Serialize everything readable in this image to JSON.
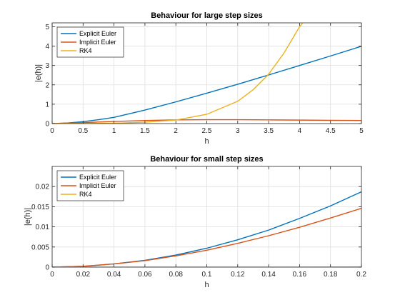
{
  "chart_data": [
    {
      "type": "line",
      "title": "Behaviour for large step sizes",
      "xlabel": "h",
      "ylabel": "|e(h)|",
      "xlim": [
        0,
        5
      ],
      "ylim": [
        0,
        5.2
      ],
      "xticks": [
        "0",
        "0.5",
        "1",
        "1.5",
        "2",
        "2.5",
        "3",
        "3.5",
        "4",
        "4.5",
        "5"
      ],
      "xtick_values": [
        0,
        0.5,
        1,
        1.5,
        2,
        2.5,
        3,
        3.5,
        4,
        4.5,
        5
      ],
      "yticks": [
        "0",
        "1",
        "2",
        "3",
        "4",
        "5"
      ],
      "ytick_values": [
        0,
        1,
        2,
        3,
        4,
        5
      ],
      "grid": true,
      "legend_position": "top-left",
      "series": [
        {
          "name": "Explicit Euler",
          "color": "#0072BD",
          "x": [
            0,
            0.25,
            0.5,
            0.75,
            1,
            1.5,
            2,
            2.5,
            3,
            3.5,
            4,
            4.5,
            5
          ],
          "y": [
            0,
            0.03,
            0.1,
            0.2,
            0.32,
            0.7,
            1.12,
            1.57,
            2.03,
            2.51,
            3.0,
            3.49,
            3.99
          ]
        },
        {
          "name": "Implicit Euler",
          "color": "#D95319",
          "x": [
            0,
            0.25,
            0.5,
            0.75,
            1,
            1.5,
            2,
            2.5,
            3,
            3.5,
            4,
            4.5,
            5
          ],
          "y": [
            0,
            0.02,
            0.05,
            0.08,
            0.11,
            0.16,
            0.19,
            0.2,
            0.2,
            0.19,
            0.18,
            0.17,
            0.16
          ]
        },
        {
          "name": "RK4",
          "color": "#EDB120",
          "x": [
            0,
            0.5,
            1,
            1.5,
            2,
            2.5,
            3,
            3.25,
            3.5,
            3.75,
            4,
            4.05
          ],
          "y": [
            0,
            0.003,
            0.02,
            0.07,
            0.18,
            0.48,
            1.15,
            1.75,
            2.55,
            3.65,
            5.0,
            5.2
          ]
        }
      ]
    },
    {
      "type": "line",
      "title": "Behaviour for small step sizes",
      "xlabel": "h",
      "ylabel": "|e(h)|",
      "xlim": [
        0,
        0.2
      ],
      "ylim": [
        0,
        0.025
      ],
      "xticks": [
        "0",
        "0.02",
        "0.04",
        "0.06",
        "0.08",
        "0.1",
        "0.12",
        "0.14",
        "0.16",
        "0.18",
        "0.2"
      ],
      "xtick_values": [
        0,
        0.02,
        0.04,
        0.06,
        0.08,
        0.1,
        0.12,
        0.14,
        0.16,
        0.18,
        0.2
      ],
      "yticks": [
        "0",
        "0.005",
        "0.01",
        "0.015",
        "0.02"
      ],
      "ytick_values": [
        0,
        0.005,
        0.01,
        0.015,
        0.02
      ],
      "grid": true,
      "legend_position": "top-left",
      "series": [
        {
          "name": "Explicit Euler",
          "color": "#0072BD",
          "x": [
            0,
            0.02,
            0.04,
            0.06,
            0.08,
            0.1,
            0.12,
            0.14,
            0.16,
            0.18,
            0.2
          ],
          "y": [
            0,
            0.0002,
            0.0008,
            0.0017,
            0.003,
            0.0047,
            0.0068,
            0.0092,
            0.0121,
            0.0152,
            0.0187
          ]
        },
        {
          "name": "Implicit Euler",
          "color": "#D95319",
          "x": [
            0,
            0.02,
            0.04,
            0.06,
            0.08,
            0.1,
            0.12,
            0.14,
            0.16,
            0.18,
            0.2
          ],
          "y": [
            0,
            0.0002,
            0.0008,
            0.0016,
            0.0028,
            0.0042,
            0.0059,
            0.0078,
            0.0099,
            0.0122,
            0.0146
          ]
        },
        {
          "name": "RK4",
          "color": "#EDB120",
          "x": [
            0,
            0.05,
            0.1,
            0.15,
            0.2
          ],
          "y": [
            0,
            0,
            1e-05,
            2e-05,
            5e-05
          ]
        }
      ]
    }
  ]
}
